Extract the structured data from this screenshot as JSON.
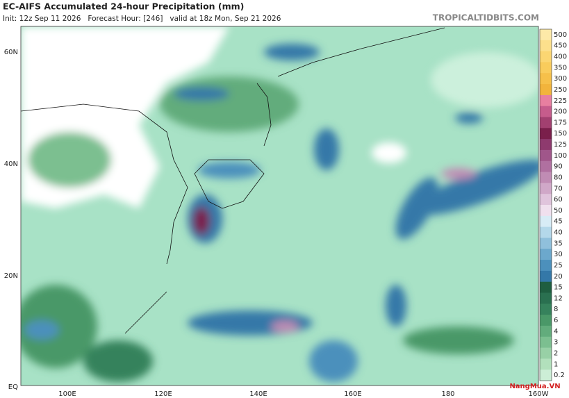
{
  "header": {
    "title": "EC-AIFS Accumulated 24-hour Precipitation (mm)",
    "subtitle": "Init: 12z Sep 11 2026   Forecast Hour: [246]   valid at 18z Mon, Sep 21 2026",
    "site": "TROPICALTIDBITS.COM"
  },
  "map": {
    "lat_labels": [
      "60N",
      "40N",
      "20N",
      "EQ"
    ],
    "lon_labels": [
      "100E",
      "120E",
      "140E",
      "160E",
      "180",
      "160W"
    ]
  },
  "colorbar": {
    "levels": [
      500,
      450,
      400,
      350,
      300,
      250,
      225,
      200,
      175,
      150,
      125,
      100,
      90,
      80,
      70,
      60,
      50,
      45,
      40,
      35,
      30,
      25,
      20,
      15,
      12,
      8,
      6,
      4,
      3,
      2,
      1,
      0.2
    ],
    "colors": [
      "#fde9a8",
      "#fce08c",
      "#fbd672",
      "#f9cc5c",
      "#f6c04a",
      "#f2b43c",
      "#e87fa0",
      "#c65c8c",
      "#a24070",
      "#7a1f4b",
      "#8e3a6e",
      "#a0568a",
      "#b070a0",
      "#c08cb4",
      "#d0a8c8",
      "#e0c4dc",
      "#f0e0ee",
      "#d8ecf6",
      "#b4d8ea",
      "#90c0dc",
      "#6ca8cc",
      "#4c90bc",
      "#3478a8",
      "#1f5e40",
      "#2a7050",
      "#36825c",
      "#4a9868",
      "#62ac7c",
      "#7cbf90",
      "#98d0a6",
      "#b2e0bc",
      "#cceed6"
    ]
  },
  "watermark": "NangMua.VN"
}
